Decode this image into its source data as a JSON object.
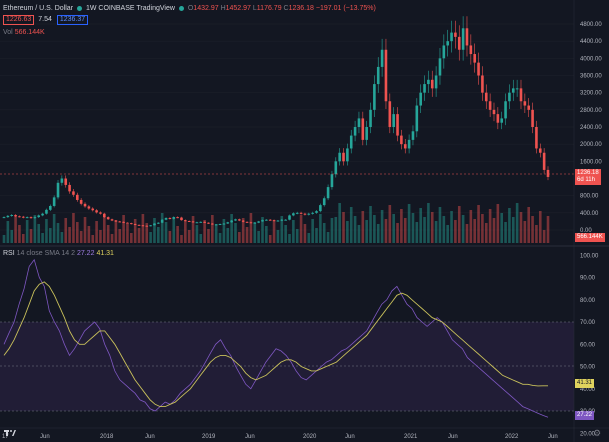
{
  "header": {
    "title": "Ethereum / U.S. Dollar",
    "interval": "1W",
    "exchange": "COINBASE",
    "source": "TradingView",
    "ohlc": {
      "o_label": "O",
      "o": "1432.97",
      "h_label": "H",
      "h": "1452.97",
      "l_label": "L",
      "l": "1176.79",
      "c_label": "C",
      "c": "1236.18",
      "change": "−197.01 (−13.75%)"
    },
    "bid": "1226.63",
    "spread": "7.54",
    "ask": "1236.37",
    "vol_label": "Vol",
    "vol_value": "566.144K"
  },
  "rsi_legend": {
    "label": "RSI",
    "params": "14 close SMA 14 2",
    "rsi_value": "27.22",
    "sma_value": "41.31"
  },
  "price_axis": {
    "ticks": [
      "4800.00",
      "4400.00",
      "4000.00",
      "3600.00",
      "3200.00",
      "2800.00",
      "2400.00",
      "2000.00",
      "1600.00",
      "800.00",
      "400.00",
      "0.00"
    ],
    "last_price": "1236.18",
    "countdown": "6d 11h",
    "vol_tag": "566.144K"
  },
  "rsi_axis": {
    "ticks": [
      "100.00",
      "90.00",
      "80.00",
      "70.00",
      "60.00",
      "50.00",
      "40.00",
      "30.00",
      "20.00"
    ],
    "sma_tag": "41.31",
    "rsi_tag": "27.22"
  },
  "time_axis": [
    "17",
    "Jun",
    "2018",
    "Jun",
    "2019",
    "Jun",
    "2020",
    "Jun",
    "2021",
    "Jun",
    "2022",
    "Jun"
  ],
  "colors": {
    "background": "#131722",
    "up": "#26a69a",
    "down": "#ef5350",
    "rsi_line": "#7e57c2",
    "rsi_sma": "#c9c15b",
    "rsi_band": "#2a2346"
  },
  "icons": {
    "logo": "tradingview-logo-icon",
    "settings": "gear-icon"
  },
  "chart_data": {
    "type": "candlestick",
    "price_range": [
      0,
      4900
    ],
    "price_closes": [
      300,
      330,
      350,
      320,
      310,
      290,
      300,
      280,
      300,
      340,
      380,
      470,
      560,
      760,
      1100,
      1200,
      1050,
      900,
      820,
      700,
      610,
      550,
      500,
      460,
      410,
      380,
      300,
      250,
      220,
      200,
      190,
      170,
      160,
      140,
      120,
      110,
      100,
      90,
      110,
      150,
      170,
      240,
      280,
      260,
      300,
      290,
      230,
      210,
      200,
      180,
      180,
      190,
      170,
      150,
      130,
      130,
      140,
      150,
      180,
      220,
      250,
      220,
      190,
      180,
      170,
      170,
      200,
      230,
      240,
      230,
      210,
      220,
      240,
      240,
      340,
      390,
      400,
      380,
      360,
      380,
      400,
      440,
      580,
      740,
      1000,
      1300,
      1600,
      1800,
      1600,
      1900,
      2200,
      2400,
      2600,
      2100,
      2400,
      2800,
      3400,
      3800,
      4200,
      3000,
      2400,
      2700,
      2200,
      2000,
      1900,
      2100,
      2300,
      2900,
      3200,
      3400,
      3500,
      3300,
      3600,
      4000,
      4300,
      4400,
      4600,
      4500,
      4200,
      4700,
      4300,
      4100,
      3900,
      3600,
      3200,
      3000,
      2800,
      2700,
      2500,
      2600,
      3000,
      3200,
      3300,
      3300,
      3000,
      2900,
      2800,
      2400,
      1900,
      1800,
      1400,
      1236
    ],
    "volume_note": "weekly volume bars",
    "rsi_values": [
      60,
      65,
      70,
      78,
      85,
      95,
      98,
      90,
      86,
      75,
      70,
      66,
      60,
      55,
      58,
      62,
      66,
      68,
      70,
      67,
      60,
      55,
      48,
      44,
      42,
      40,
      38,
      35,
      34,
      31,
      30,
      32,
      34,
      33,
      35,
      38,
      40,
      42,
      45,
      48,
      52,
      56,
      60,
      62,
      58,
      55,
      50,
      46,
      42,
      40,
      44,
      48,
      52,
      55,
      58,
      57,
      55,
      52,
      48,
      45,
      44,
      46,
      48,
      50,
      52,
      53,
      55,
      57,
      58,
      60,
      62,
      64,
      66,
      70,
      74,
      78,
      80,
      84,
      86,
      82,
      78,
      76,
      72,
      70,
      68,
      70,
      72,
      70,
      66,
      62,
      60,
      58,
      54,
      52,
      50,
      48,
      46,
      44,
      42,
      40,
      38,
      36,
      34,
      32,
      31,
      30,
      29,
      28,
      27.22
    ],
    "rsi_sma_values": [
      55,
      58,
      62,
      67,
      72,
      78,
      84,
      87,
      88,
      86,
      82,
      77,
      72,
      66,
      62,
      60,
      60,
      62,
      64,
      66,
      66,
      63,
      60,
      56,
      52,
      48,
      44,
      41,
      38,
      35,
      33,
      32,
      32,
      33,
      34,
      36,
      38,
      40,
      43,
      46,
      49,
      52,
      54,
      55,
      55,
      54,
      52,
      50,
      47,
      45,
      44,
      45,
      46,
      48,
      50,
      52,
      53,
      53,
      52,
      50,
      49,
      48,
      48,
      49,
      50,
      51,
      52,
      54,
      56,
      58,
      60,
      62,
      64,
      67,
      70,
      73,
      76,
      79,
      82,
      83,
      82,
      80,
      78,
      76,
      74,
      72,
      71,
      70,
      68,
      66,
      64,
      62,
      60,
      58,
      56,
      54,
      52,
      50,
      48,
      46,
      45,
      44,
      43,
      42,
      42,
      41.5,
      41.3,
      41.31,
      41.31
    ]
  }
}
